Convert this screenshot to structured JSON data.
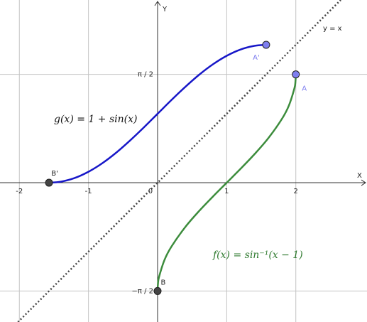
{
  "chart_data": {
    "type": "line",
    "xlim": [
      -2.28,
      3.03
    ],
    "ylim": [
      -2.02,
      2.65
    ],
    "xticks": [
      -2,
      -1,
      0,
      1,
      2
    ],
    "yticks": [
      {
        "value": -1.5708,
        "label": "−π / 2"
      },
      {
        "value": 1.5708,
        "label": "π / 2"
      }
    ],
    "x_label": "X",
    "y_label": "Y",
    "grid": true,
    "series": [
      {
        "name": "g(x) = 1 + sin(x)",
        "color": "#1717c8",
        "style": "solid",
        "x": [
          -1.5708,
          -1.4,
          -1.2,
          -1.0,
          -0.8,
          -0.6,
          -0.4,
          -0.2,
          0,
          0.2,
          0.4,
          0.6,
          0.8,
          1.0,
          1.2,
          1.4,
          1.5708
        ],
        "values": [
          0,
          0.015,
          0.068,
          0.159,
          0.283,
          0.435,
          0.611,
          0.801,
          1,
          1.199,
          1.389,
          1.565,
          1.717,
          1.841,
          1.932,
          1.985,
          2
        ]
      },
      {
        "name": "f(x) = sin⁻¹(x − 1)",
        "color": "#3c8c3c",
        "style": "solid",
        "x": [
          0,
          0.005,
          0.02,
          0.1,
          0.2,
          0.4,
          0.6,
          0.8,
          1,
          1.2,
          1.4,
          1.6,
          1.8,
          1.9,
          1.98,
          1.995,
          2
        ],
        "values": [
          -1.5708,
          -1.4706,
          -1.3705,
          -1.1198,
          -0.9273,
          -0.6435,
          -0.4115,
          -0.2014,
          0,
          0.2014,
          0.4115,
          0.6435,
          0.9273,
          1.1198,
          1.3705,
          1.4706,
          1.5708
        ]
      },
      {
        "name": "y = x",
        "color": "#444444",
        "style": "dotted",
        "x": [
          -2.02,
          2.65
        ],
        "values": [
          -2.02,
          2.65
        ]
      }
    ],
    "points": [
      {
        "label": "A",
        "x": 2,
        "y": 1.5708,
        "color": "#7f7fef"
      },
      {
        "label": "A'",
        "x": 1.5708,
        "y": 2,
        "color": "#7f7fef"
      },
      {
        "label": "B",
        "x": 0,
        "y": -1.5708,
        "color": "#444444"
      },
      {
        "label": "B'",
        "x": -1.5708,
        "y": 0,
        "color": "#444444"
      }
    ]
  }
}
